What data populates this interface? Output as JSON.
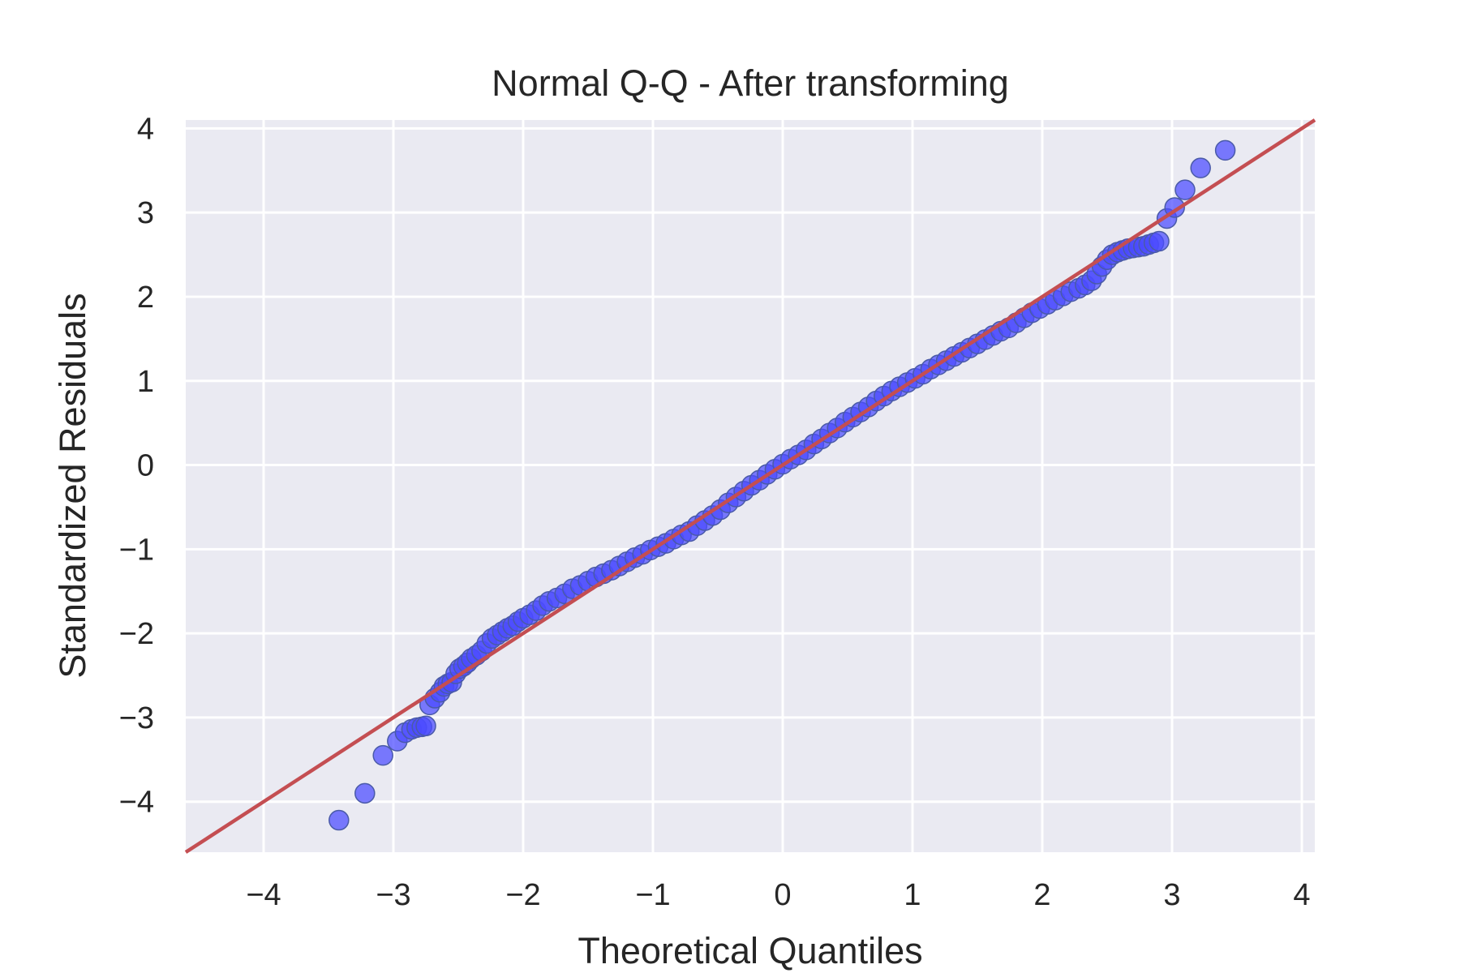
{
  "chart_data": {
    "type": "scatter",
    "title": "Normal Q-Q - After transforming",
    "xlabel": "Theoretical Quantiles",
    "ylabel": "Standardized Residuals",
    "xlim": [
      -4.6,
      4.1
    ],
    "ylim": [
      -4.6,
      4.1
    ],
    "xticks": [
      -4,
      -3,
      -2,
      -1,
      0,
      1,
      2,
      3,
      4
    ],
    "yticks": [
      -4,
      -3,
      -2,
      -1,
      0,
      1,
      2,
      3,
      4
    ],
    "xtick_labels": [
      "−4",
      "−3",
      "−2",
      "−1",
      "0",
      "1",
      "2",
      "3",
      "4"
    ],
    "ytick_labels": [
      "−4",
      "−3",
      "−2",
      "−1",
      "0",
      "1",
      "2",
      "3",
      "4"
    ],
    "grid": true,
    "reference_line": {
      "slope": 1,
      "intercept": 0,
      "color": "#c44e52"
    },
    "point_color": "#4b4bff",
    "background_color": "#eaeaf2",
    "series": [
      {
        "x": [
          -3.42,
          -3.22,
          -3.08,
          -2.97,
          -2.91,
          -2.86,
          -2.82,
          -2.78,
          -2.75,
          -2.72,
          -2.68,
          -2.64,
          -2.61,
          -2.58,
          -2.55,
          -2.52,
          -2.49,
          -2.46,
          -2.43,
          -2.4,
          -2.36,
          -2.32,
          -2.28,
          -2.24,
          -2.2,
          -2.16,
          -2.12,
          -2.08,
          -2.04,
          -2.0,
          -1.95,
          -1.9,
          -1.85,
          -1.8,
          -1.74,
          -1.68,
          -1.62,
          -1.56,
          -1.5,
          -1.44,
          -1.38,
          -1.32,
          -1.26,
          -1.2,
          -1.14,
          -1.08,
          -1.02,
          -0.96,
          -0.9,
          -0.84,
          -0.78,
          -0.72,
          -0.66,
          -0.6,
          -0.54,
          -0.48,
          -0.42,
          -0.36,
          -0.3,
          -0.24,
          -0.18,
          -0.12,
          -0.06,
          0.0,
          0.06,
          0.12,
          0.18,
          0.24,
          0.3,
          0.36,
          0.42,
          0.48,
          0.54,
          0.6,
          0.66,
          0.72,
          0.78,
          0.84,
          0.9,
          0.96,
          1.02,
          1.08,
          1.14,
          1.2,
          1.26,
          1.32,
          1.38,
          1.44,
          1.5,
          1.56,
          1.62,
          1.68,
          1.74,
          1.8,
          1.86,
          1.92,
          1.98,
          2.04,
          2.1,
          2.16,
          2.22,
          2.28,
          2.33,
          2.38,
          2.42,
          2.46,
          2.5,
          2.54,
          2.58,
          2.62,
          2.66,
          2.7,
          2.74,
          2.78,
          2.82,
          2.86,
          2.9,
          2.96,
          3.02,
          3.1,
          3.22,
          3.41
        ],
        "y": [
          -4.22,
          -3.9,
          -3.45,
          -3.28,
          -3.18,
          -3.14,
          -3.12,
          -3.11,
          -3.1,
          -2.85,
          -2.77,
          -2.7,
          -2.63,
          -2.6,
          -2.58,
          -2.48,
          -2.42,
          -2.39,
          -2.35,
          -2.3,
          -2.26,
          -2.21,
          -2.12,
          -2.06,
          -2.02,
          -1.98,
          -1.94,
          -1.91,
          -1.86,
          -1.82,
          -1.78,
          -1.73,
          -1.67,
          -1.62,
          -1.58,
          -1.53,
          -1.47,
          -1.43,
          -1.38,
          -1.33,
          -1.29,
          -1.25,
          -1.2,
          -1.15,
          -1.1,
          -1.06,
          -1.01,
          -0.97,
          -0.93,
          -0.88,
          -0.83,
          -0.79,
          -0.72,
          -0.66,
          -0.6,
          -0.53,
          -0.45,
          -0.38,
          -0.31,
          -0.24,
          -0.18,
          -0.11,
          -0.05,
          0.01,
          0.07,
          0.12,
          0.18,
          0.25,
          0.31,
          0.38,
          0.44,
          0.51,
          0.57,
          0.63,
          0.69,
          0.76,
          0.82,
          0.88,
          0.93,
          0.98,
          1.03,
          1.08,
          1.14,
          1.19,
          1.24,
          1.29,
          1.34,
          1.39,
          1.44,
          1.49,
          1.54,
          1.59,
          1.63,
          1.69,
          1.75,
          1.81,
          1.86,
          1.91,
          1.96,
          2.01,
          2.06,
          2.1,
          2.14,
          2.19,
          2.27,
          2.36,
          2.44,
          2.5,
          2.53,
          2.55,
          2.57,
          2.58,
          2.59,
          2.6,
          2.62,
          2.64,
          2.66,
          2.93,
          3.06,
          3.27,
          3.53,
          3.74
        ]
      }
    ]
  }
}
